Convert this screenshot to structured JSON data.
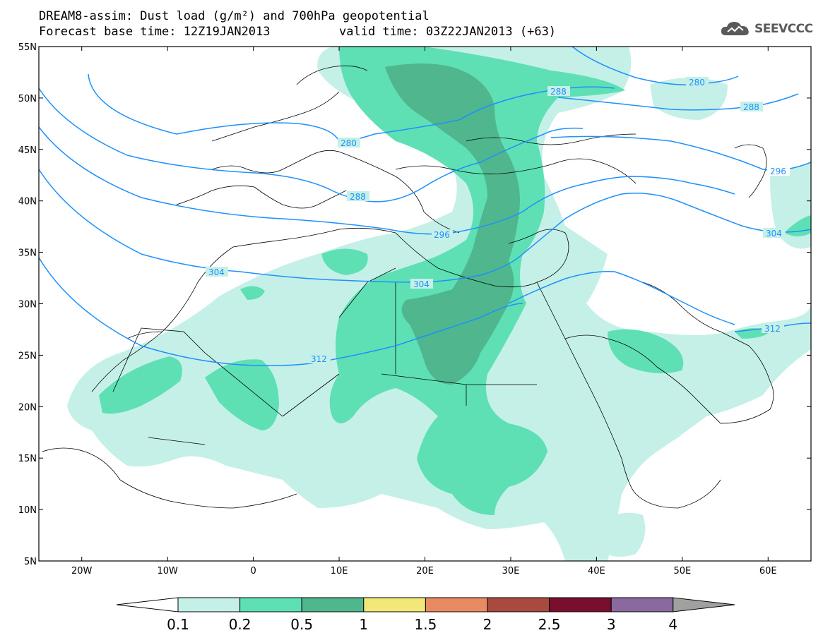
{
  "title": {
    "line1": "DREAM8-assim: Dust load (g/m²) and 700hPa geopotential",
    "line2": "Forecast base time: 12Z19JAN2013",
    "valid_time": "valid time: 03Z22JAN2013 (+63)"
  },
  "logo": {
    "text": "SEEVCCC",
    "icon": "cloud-logo-icon"
  },
  "map": {
    "lon_range": [
      -25,
      65
    ],
    "lat_range": [
      5,
      55
    ],
    "lat_ticks": [
      "55N",
      "50N",
      "45N",
      "40N",
      "35N",
      "30N",
      "25N",
      "20N",
      "15N",
      "10N",
      "5N"
    ],
    "lon_ticks": [
      "20W",
      "10W",
      "0",
      "10E",
      "20E",
      "30E",
      "40E",
      "50E",
      "60E"
    ],
    "contour_color": "#1e90ff",
    "contour_labels": [
      "280",
      "288",
      "296",
      "304",
      "312",
      "288",
      "280",
      "288",
      "296",
      "304",
      "304",
      "312",
      "312"
    ]
  },
  "colorbar": {
    "labels": [
      "0.1",
      "0.2",
      "0.5",
      "1",
      "1.5",
      "2",
      "2.5",
      "3",
      "4"
    ],
    "colors": [
      "#ffffff",
      "#c4f0e8",
      "#5ee0b4",
      "#4fb68e",
      "#f2e87a",
      "#e88a62",
      "#a84a3e",
      "#7a0e2e",
      "#8a68a0",
      "#a0a0a0"
    ]
  }
}
